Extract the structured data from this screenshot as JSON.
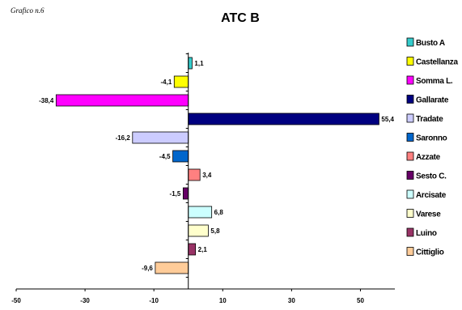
{
  "caption": "Grafico n.6",
  "chart_data": {
    "type": "bar",
    "orientation": "horizontal",
    "title": "ATC B",
    "xlabel": "",
    "ylabel": "",
    "xlim": [
      -50,
      60
    ],
    "xticks": [
      -50,
      -30,
      -10,
      10,
      30,
      50
    ],
    "grid": false,
    "legend": "right",
    "categories": [
      "Busto A",
      "Castellanza",
      "Somma L.",
      "Gallarate",
      "Tradate",
      "Saronno",
      "Azzate",
      "Sesto C.",
      "Arcisate",
      "Varese",
      "Luino",
      "Cittiglio"
    ],
    "values": [
      1.1,
      -4.1,
      -38.4,
      55.4,
      -16.2,
      -4.5,
      3.4,
      -1.5,
      6.8,
      5.8,
      2.1,
      -9.6
    ],
    "value_labels": [
      "1,1",
      "-4,1",
      "-38,4",
      "55,4",
      "-16,2",
      "-4,5",
      "3,4",
      "-1,5",
      "6,8",
      "5,8",
      "2,1",
      "-9,6"
    ],
    "colors": [
      "#33cccc",
      "#ffff00",
      "#ff00ff",
      "#000080",
      "#ccccff",
      "#0066cc",
      "#ff8080",
      "#660066",
      "#ccffff",
      "#ffffcc",
      "#993366",
      "#ffcc99"
    ]
  }
}
